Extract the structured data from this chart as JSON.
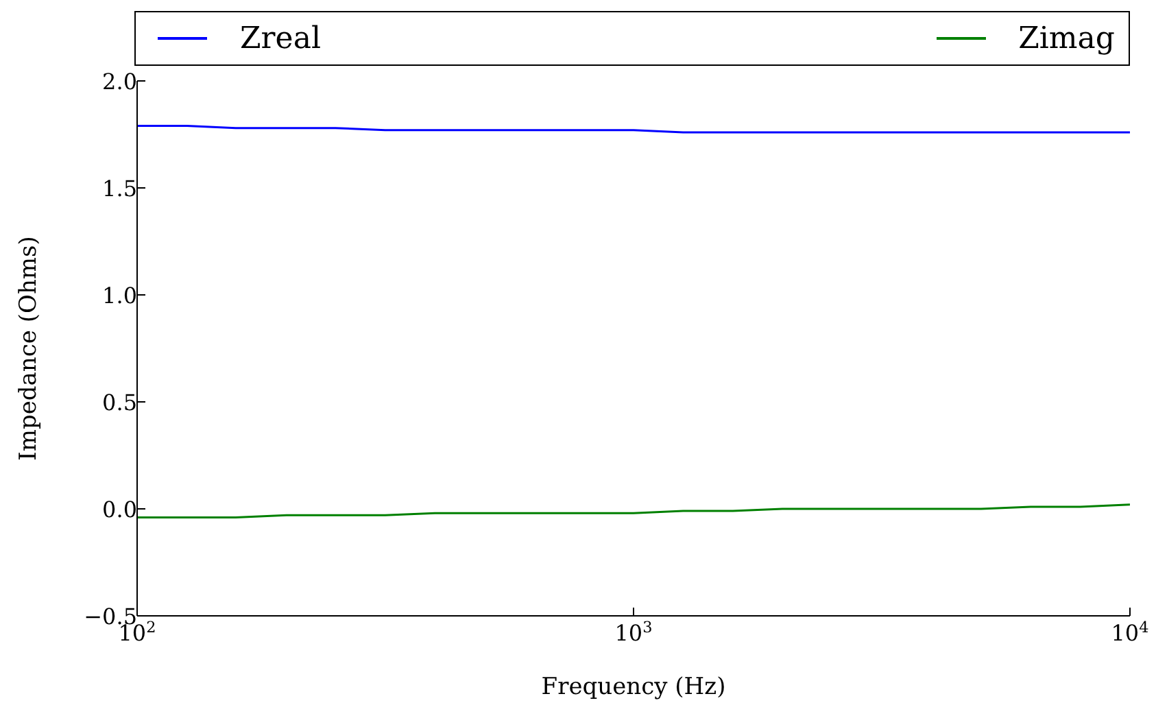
{
  "chart_data": {
    "type": "line",
    "xlabel": "Frequency (Hz)",
    "ylabel": "Impedance (Ohms)",
    "log": "x",
    "x": [
      100,
      126,
      158,
      200,
      251,
      316,
      398,
      501,
      631,
      794,
      1000,
      1259,
      1585,
      1995,
      2512,
      3162,
      3981,
      5012,
      6310,
      7943,
      10000
    ],
    "series": [
      {
        "name": "Zreal",
        "color": "#0000ff",
        "values": [
          1.79,
          1.79,
          1.78,
          1.78,
          1.78,
          1.77,
          1.77,
          1.77,
          1.77,
          1.77,
          1.77,
          1.76,
          1.76,
          1.76,
          1.76,
          1.76,
          1.76,
          1.76,
          1.76,
          1.76,
          1.76
        ]
      },
      {
        "name": "Zimag",
        "color": "#008000",
        "values": [
          -0.04,
          -0.04,
          -0.04,
          -0.03,
          -0.03,
          -0.03,
          -0.02,
          -0.02,
          -0.02,
          -0.02,
          -0.02,
          -0.01,
          -0.01,
          0.0,
          0.0,
          0.0,
          0.0,
          0.0,
          0.01,
          0.01,
          0.02
        ]
      }
    ],
    "xlim": [
      100,
      10000
    ],
    "xticks": [
      {
        "value": 100,
        "label": "10$^{2}$"
      },
      {
        "value": 1000,
        "label": "10$^{3}$"
      },
      {
        "value": 10000,
        "label": "10$^{4}$"
      }
    ],
    "ylim": [
      -0.5,
      2.0
    ],
    "yticks": [
      {
        "value": -0.5,
        "label": "−0.5"
      },
      {
        "value": 0,
        "label": "0.0"
      },
      {
        "value": 0.5,
        "label": "0.5"
      },
      {
        "value": 1,
        "label": "1.0"
      },
      {
        "value": 1.5,
        "label": "1.5"
      },
      {
        "value": 2,
        "label": "2.0"
      }
    ],
    "legend": "top",
    "grid": false,
    "marker": "none",
    "line_style": "solid"
  }
}
